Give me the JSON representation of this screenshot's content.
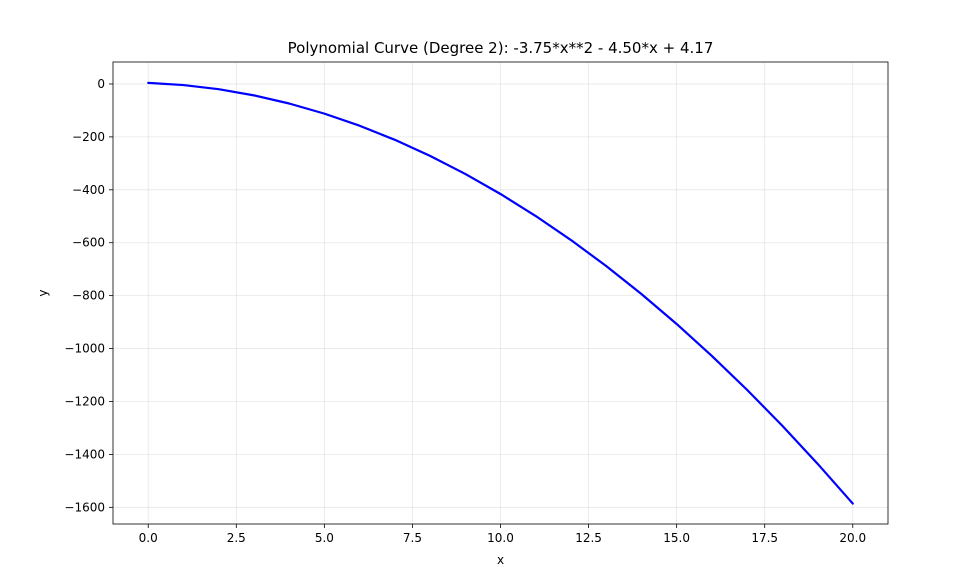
{
  "chart_data": {
    "type": "line",
    "title": "Polynomial Curve (Degree 2): -3.75*x**2 - 4.50*x + 4.17",
    "xlabel": "x",
    "ylabel": "y",
    "xlim": [
      -1.0,
      21.0
    ],
    "ylim": [
      -1663,
      83
    ],
    "x_ticks": [
      0.0,
      2.5,
      5.0,
      7.5,
      10.0,
      12.5,
      15.0,
      17.5,
      20.0
    ],
    "x_tick_labels": [
      "0.0",
      "2.5",
      "5.0",
      "7.5",
      "10.0",
      "12.5",
      "15.0",
      "17.5",
      "20.0"
    ],
    "y_ticks": [
      0,
      -200,
      -400,
      -600,
      -800,
      -1000,
      -1200,
      -1400,
      -1600
    ],
    "y_tick_labels": [
      "0",
      "−200",
      "−400",
      "−600",
      "−800",
      "−1000",
      "−1200",
      "−1400",
      "−1600"
    ],
    "grid": true,
    "series": [
      {
        "color": "#0000ff",
        "x": [
          0,
          1,
          2,
          3,
          4,
          5,
          6,
          7,
          8,
          9,
          10,
          11,
          12,
          13,
          14,
          15,
          16,
          17,
          18,
          19,
          20
        ],
        "y": [
          4.17,
          -4.08,
          -19.83,
          -43.08,
          -73.83,
          -112.08,
          -157.83,
          -211.08,
          -271.83,
          -340.08,
          -415.83,
          -499.08,
          -589.83,
          -688.08,
          -793.83,
          -907.08,
          -1027.83,
          -1156.08,
          -1291.83,
          -1435.08,
          -1585.83
        ]
      }
    ]
  }
}
